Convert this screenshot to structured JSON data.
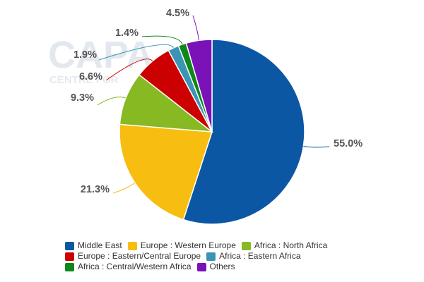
{
  "watermark": {
    "text": "CAPA",
    "subtext": "CENTRE FOR"
  },
  "chart_data": {
    "type": "pie",
    "title": "",
    "legend_position": "bottom",
    "series": [
      {
        "name": "Middle East",
        "value": 55.0,
        "label": "55.0%",
        "color": "#0b57a4"
      },
      {
        "name": "Europe : Western Europe",
        "value": 21.3,
        "label": "21.3%",
        "color": "#f7bd10"
      },
      {
        "name": "Africa : North Africa",
        "value": 9.3,
        "label": "9.3%",
        "color": "#86b922"
      },
      {
        "name": "Europe : Eastern/Central Europe",
        "value": 6.6,
        "label": "6.6%",
        "color": "#cc0000"
      },
      {
        "name": "Africa : Eastern Africa",
        "value": 1.9,
        "label": "1.9%",
        "color": "#3a95b5"
      },
      {
        "name": "Africa : Central/Western Africa",
        "value": 1.4,
        "label": "1.4%",
        "color": "#10871b"
      },
      {
        "name": "Others",
        "value": 4.5,
        "label": "4.5%",
        "color": "#7a12b8"
      }
    ]
  }
}
